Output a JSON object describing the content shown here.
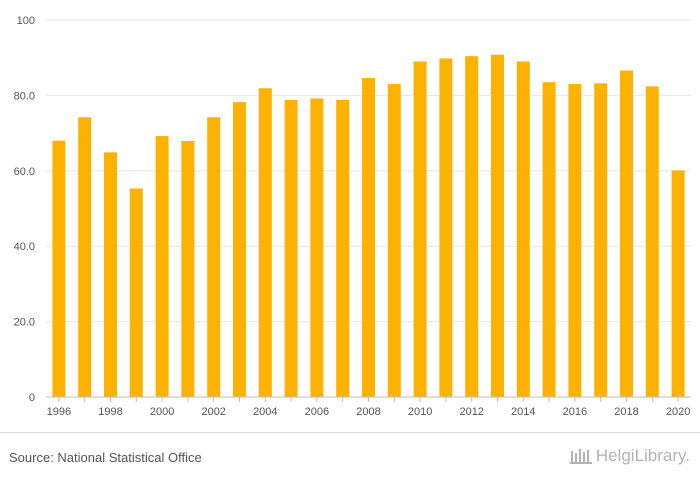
{
  "chart_data": {
    "type": "bar",
    "categories": [
      "1996",
      "1997",
      "1998",
      "1999",
      "2000",
      "2001",
      "2002",
      "2003",
      "2004",
      "2005",
      "2006",
      "2007",
      "2008",
      "2009",
      "2010",
      "2011",
      "2012",
      "2013",
      "2014",
      "2015",
      "2016",
      "2017",
      "2018",
      "2019",
      "2020"
    ],
    "values": [
      68.0,
      74.2,
      64.9,
      55.3,
      69.2,
      67.9,
      74.2,
      78.2,
      81.9,
      78.8,
      79.2,
      78.8,
      84.6,
      83.0,
      89.0,
      89.8,
      90.4,
      90.8,
      89.0,
      83.5,
      83.0,
      83.2,
      86.6,
      82.4,
      60.1
    ],
    "x_tick_labels": [
      "1996",
      "1998",
      "2000",
      "2002",
      "2004",
      "2006",
      "2008",
      "2010",
      "2012",
      "2014",
      "2016",
      "2018",
      "2020"
    ],
    "y_ticks": [
      0,
      20,
      40,
      60,
      80,
      100
    ],
    "y_tick_labels": [
      "0",
      "20.0",
      "40.0",
      "60.0",
      "80.0",
      "100"
    ],
    "ylim": [
      0,
      100
    ],
    "grid": true,
    "bar_color": "#FDB201",
    "title": "",
    "xlabel": "",
    "ylabel": ""
  },
  "footer": {
    "source": "Source: National Statistical Office",
    "logo_text": "HelgiLibrary."
  }
}
